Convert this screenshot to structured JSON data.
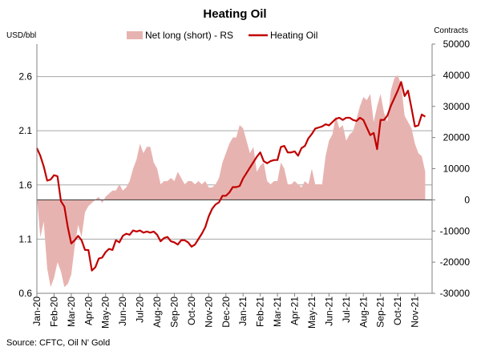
{
  "chart_data": {
    "type": "line",
    "title": "Heating Oil",
    "source": "Source: CFTC, Oil N' Gold",
    "left_axis": {
      "unit": "USD/bbl",
      "ylim": [
        0.6,
        2.9
      ],
      "ticks": [
        0.6,
        1.1,
        1.6,
        2.1,
        2.6
      ],
      "tick_labels": [
        "0.6",
        "1.1",
        "1.6",
        "2.1",
        "2.6"
      ]
    },
    "right_axis": {
      "unit": "Contracts",
      "ylim": [
        -30000,
        50000
      ],
      "ticks": [
        -30000,
        -20000,
        -10000,
        0,
        10000,
        20000,
        30000,
        40000,
        50000
      ],
      "tick_labels": [
        "-30000",
        "-20000",
        "-10000",
        "0",
        "10000",
        "20000",
        "30000",
        "40000",
        "50000"
      ]
    },
    "x_range": [
      0,
      23
    ],
    "x_ticks": [
      0,
      1,
      2,
      3,
      4,
      5,
      6,
      7,
      8,
      9,
      10,
      11,
      12,
      13,
      14,
      15,
      16,
      17,
      18,
      19,
      20,
      21,
      22
    ],
    "x_tick_labels": [
      "Jan-20",
      "Feb-20",
      "Mar-20",
      "Apr-20",
      "May-20",
      "Jun-20",
      "Jul-20",
      "Aug-20",
      "Sep-20",
      "Oct-20",
      "Nov-20",
      "Dec-20",
      "Jan-21",
      "Feb-21",
      "Mar-21",
      "Apr-21",
      "May-21",
      "Jun-21",
      "Jul-21",
      "Aug-21",
      "Sep-21",
      "Oct-21",
      "Nov-21"
    ],
    "legend": {
      "position": "top-center"
    },
    "series": [
      {
        "name": "Net long (short) - RS",
        "kind": "area",
        "axis": "right",
        "color": "#e7b3b0",
        "x": [
          0.0,
          0.2,
          0.4,
          0.6,
          0.8,
          1.0,
          1.2,
          1.4,
          1.6,
          1.8,
          2.0,
          2.2,
          2.4,
          2.6,
          2.8,
          3.0,
          3.2,
          3.4,
          3.6,
          3.8,
          4.0,
          4.2,
          4.4,
          4.6,
          4.8,
          5.0,
          5.2,
          5.4,
          5.6,
          5.8,
          6.0,
          6.2,
          6.4,
          6.6,
          6.8,
          7.0,
          7.2,
          7.4,
          7.6,
          7.8,
          8.0,
          8.2,
          8.4,
          8.6,
          8.8,
          9.0,
          9.2,
          9.4,
          9.6,
          9.8,
          10.0,
          10.2,
          10.4,
          10.6,
          10.8,
          11.0,
          11.2,
          11.4,
          11.6,
          11.8,
          12.0,
          12.2,
          12.4,
          12.6,
          12.8,
          13.0,
          13.2,
          13.4,
          13.6,
          13.8,
          14.0,
          14.2,
          14.4,
          14.6,
          14.8,
          15.0,
          15.2,
          15.4,
          15.6,
          15.8,
          16.0,
          16.2,
          16.4,
          16.6,
          16.8,
          17.0,
          17.2,
          17.4,
          17.6,
          17.8,
          18.0,
          18.2,
          18.4,
          18.6,
          18.8,
          19.0,
          19.2,
          19.4,
          19.6,
          19.8,
          20.0,
          20.2,
          20.4,
          20.6,
          20.8,
          21.0,
          21.2,
          21.4,
          21.6,
          21.8,
          22.0,
          22.2,
          22.4,
          22.6
        ],
        "values": [
          1000,
          -12000,
          -7000,
          -22000,
          -28000,
          -25000,
          -20000,
          -23000,
          -28000,
          -27000,
          -24000,
          -15000,
          -8000,
          -12000,
          -4000,
          -2000,
          -1000,
          0,
          1000,
          -1000,
          1000,
          2000,
          3000,
          3000,
          5000,
          3000,
          4000,
          6000,
          10000,
          13000,
          18000,
          15000,
          17000,
          17000,
          12000,
          10000,
          5000,
          6000,
          6000,
          7000,
          6000,
          9000,
          7000,
          5000,
          6000,
          6000,
          5000,
          6000,
          5000,
          6000,
          4000,
          4000,
          5000,
          7000,
          12000,
          15000,
          18000,
          20000,
          20000,
          24000,
          23000,
          19000,
          15000,
          17000,
          9000,
          11000,
          12000,
          6000,
          5000,
          6000,
          6000,
          12000,
          10000,
          5000,
          5000,
          6000,
          5000,
          4000,
          6000,
          5000,
          10000,
          5000,
          5000,
          5000,
          14000,
          19000,
          21000,
          27000,
          23000,
          24000,
          19000,
          21000,
          22000,
          26000,
          30000,
          33000,
          32000,
          34000,
          25000,
          30000,
          34000,
          28000,
          25000,
          35000,
          39000,
          40000,
          37000,
          27000,
          25000,
          23000,
          18000,
          15000,
          14000,
          9000
        ],
        "left_edge": 0.0,
        "right_edge": 22.6
      },
      {
        "name": "Heating Oil",
        "kind": "line",
        "axis": "left",
        "color": "#c00000",
        "x": [
          0.0,
          0.2,
          0.4,
          0.6,
          0.8,
          1.0,
          1.2,
          1.4,
          1.6,
          1.8,
          2.0,
          2.2,
          2.4,
          2.6,
          2.8,
          3.0,
          3.2,
          3.4,
          3.6,
          3.8,
          4.0,
          4.2,
          4.4,
          4.6,
          4.8,
          5.0,
          5.2,
          5.4,
          5.6,
          5.8,
          6.0,
          6.2,
          6.4,
          6.6,
          6.8,
          7.0,
          7.2,
          7.4,
          7.6,
          7.8,
          8.0,
          8.2,
          8.4,
          8.6,
          8.8,
          9.0,
          9.2,
          9.4,
          9.6,
          9.8,
          10.0,
          10.2,
          10.4,
          10.6,
          10.8,
          11.0,
          11.2,
          11.4,
          11.6,
          11.8,
          12.0,
          12.2,
          12.4,
          12.6,
          12.8,
          13.0,
          13.2,
          13.4,
          13.6,
          13.8,
          14.0,
          14.2,
          14.4,
          14.6,
          14.8,
          15.0,
          15.2,
          15.4,
          15.6,
          15.8,
          16.0,
          16.2,
          16.4,
          16.6,
          16.8,
          17.0,
          17.2,
          17.4,
          17.6,
          17.8,
          18.0,
          18.2,
          18.4,
          18.6,
          18.8,
          19.0,
          19.2,
          19.4,
          19.6,
          19.8,
          20.0,
          20.2,
          20.4,
          20.6,
          20.8,
          21.0,
          21.2,
          21.4,
          21.6,
          21.8,
          22.0,
          22.2,
          22.4,
          22.6
        ],
        "values": [
          1.94,
          1.87,
          1.77,
          1.64,
          1.65,
          1.69,
          1.68,
          1.45,
          1.4,
          1.21,
          1.06,
          1.09,
          1.13,
          1.09,
          1.0,
          1.0,
          0.81,
          0.84,
          0.92,
          0.93,
          0.98,
          1.01,
          1.0,
          1.09,
          1.07,
          1.13,
          1.15,
          1.14,
          1.18,
          1.17,
          1.18,
          1.16,
          1.17,
          1.16,
          1.17,
          1.14,
          1.08,
          1.11,
          1.12,
          1.08,
          1.07,
          1.05,
          1.09,
          1.09,
          1.07,
          1.03,
          1.05,
          1.1,
          1.15,
          1.21,
          1.31,
          1.38,
          1.42,
          1.44,
          1.5,
          1.5,
          1.53,
          1.58,
          1.58,
          1.59,
          1.66,
          1.71,
          1.76,
          1.81,
          1.86,
          1.9,
          1.82,
          1.8,
          1.82,
          1.83,
          1.83,
          1.95,
          1.96,
          1.9,
          1.9,
          1.91,
          1.87,
          1.94,
          1.96,
          2.03,
          2.07,
          2.12,
          2.13,
          2.14,
          2.16,
          2.15,
          2.18,
          2.21,
          2.22,
          2.2,
          2.22,
          2.22,
          2.2,
          2.19,
          2.22,
          2.2,
          2.13,
          2.06,
          2.08,
          1.93,
          2.2,
          2.2,
          2.24,
          2.33,
          2.4,
          2.47,
          2.55,
          2.42,
          2.47,
          2.31,
          2.14,
          2.15,
          2.25,
          2.23
        ]
      }
    ]
  }
}
